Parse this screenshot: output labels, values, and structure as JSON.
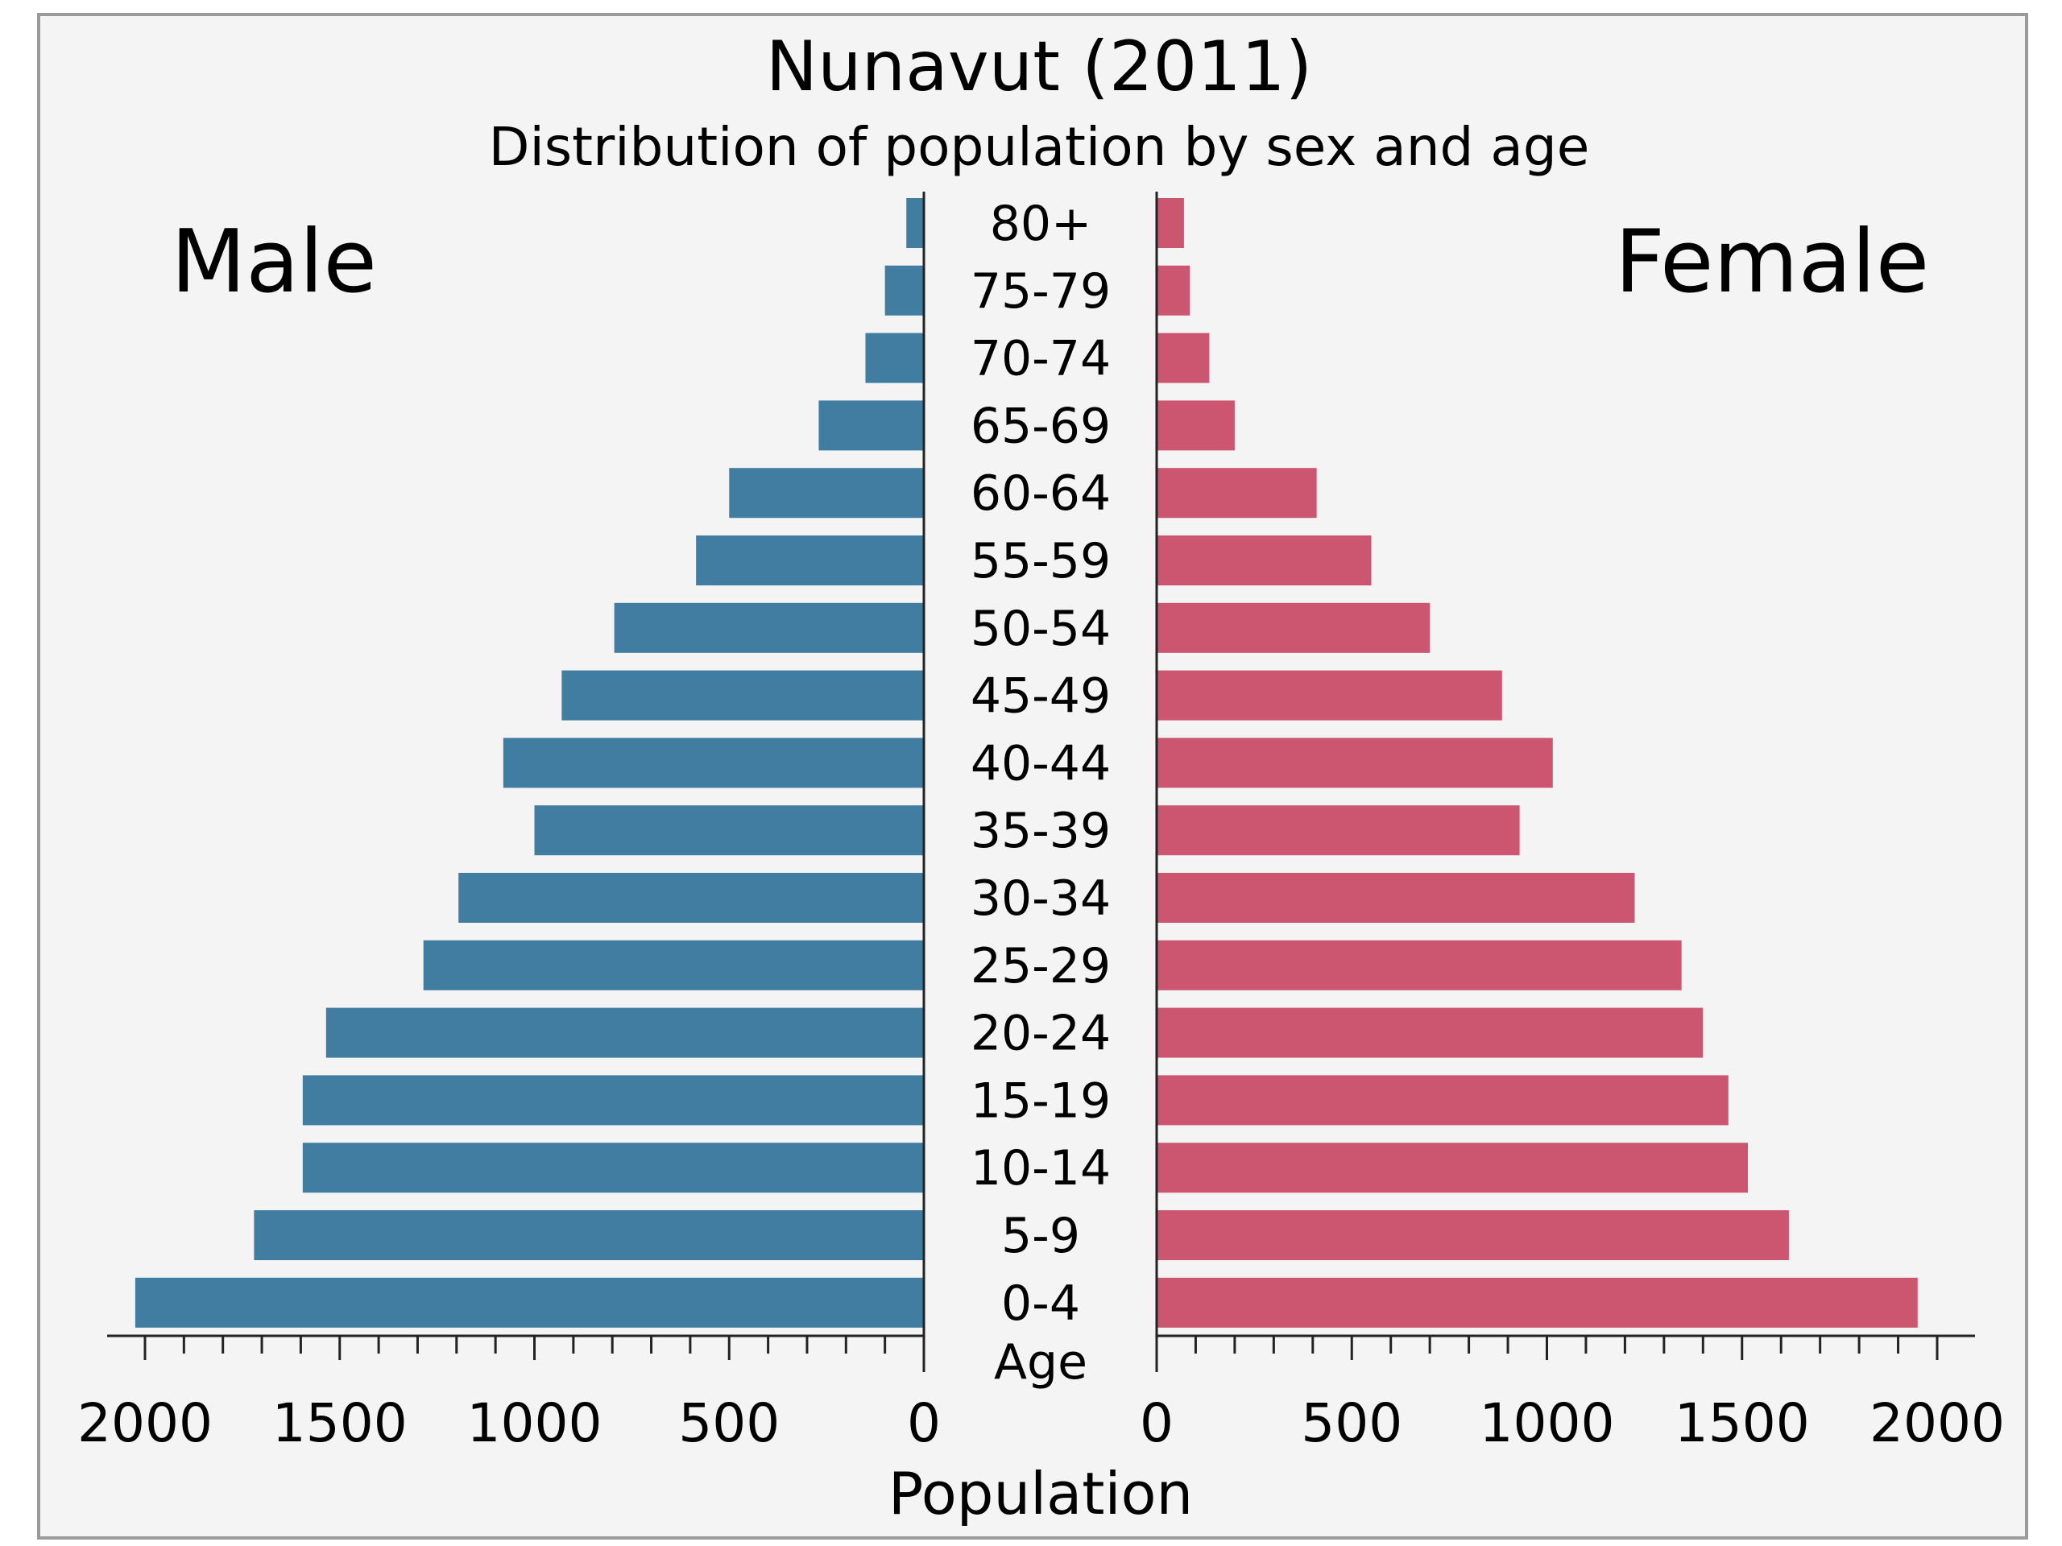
{
  "chart_data": {
    "type": "bar",
    "title": "Nunavut (2011)",
    "subtitle": "Distribution of population by sex and age",
    "ylabel": "Age",
    "xlabel": "Population",
    "xlim": [
      0,
      2000
    ],
    "x_ticks": [
      "2000",
      "1500",
      "1000",
      "500",
      "0"
    ],
    "x_ticks_right": [
      "0",
      "500",
      "1000",
      "1500",
      "2000"
    ],
    "categories": [
      "80+",
      "75-79",
      "70-74",
      "65-69",
      "60-64",
      "55-59",
      "50-54",
      "45-49",
      "40-44",
      "35-39",
      "30-34",
      "25-29",
      "20-24",
      "15-19",
      "10-14",
      "5-9",
      "0-4"
    ],
    "series": [
      {
        "name": "Male",
        "color": "#417CA1",
        "values": [
          45,
          100,
          150,
          270,
          500,
          585,
          795,
          930,
          1080,
          1000,
          1195,
          1285,
          1535,
          1595,
          1595,
          1720,
          2025
        ]
      },
      {
        "name": "Female",
        "color": "#CC5670",
        "values": [
          70,
          85,
          135,
          200,
          410,
          550,
          700,
          885,
          1015,
          930,
          1225,
          1345,
          1400,
          1465,
          1515,
          1620,
          1950
        ]
      }
    ],
    "background": "#F4F4F4",
    "grid": false
  }
}
